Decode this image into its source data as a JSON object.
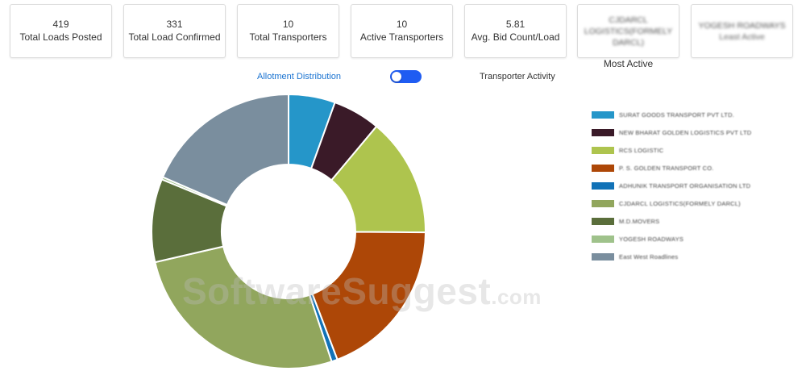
{
  "stats": [
    {
      "value": "419",
      "label": "Total Loads Posted"
    },
    {
      "value": "331",
      "label": "Total Load Confirmed"
    },
    {
      "value": "10",
      "label": "Total Transporters"
    },
    {
      "value": "10",
      "label": "Active Transporters"
    },
    {
      "value": "5.81",
      "label": "Avg. Bid Count/Load"
    }
  ],
  "most_active": {
    "name": "CJDARCL LOGISTICS(FORMELY DARCL)",
    "caption": "Most Active"
  },
  "least_active": {
    "name": "YOGESH ROADWAYS",
    "caption": "Least Active"
  },
  "toggle": {
    "left_label": "Allotment Distribution",
    "right_label": "Transporter Activity",
    "state": "on"
  },
  "colors": {
    "accent_link": "#1a73d1",
    "toggle": "#1f5cf2"
  },
  "chart_data": {
    "type": "pie",
    "variant": "donut",
    "title": "",
    "legend_position": "right",
    "slices": [
      {
        "name": "SURAT GOODS TRANSPORT PVT LTD.",
        "value": 5.5,
        "color": "#2596c9"
      },
      {
        "name": "NEW BHARAT GOLDEN LOGISTICS PVT LTD",
        "value": 5.6,
        "color": "#3a1a28"
      },
      {
        "name": "RCS LOGISTIC",
        "value": 14.0,
        "color": "#aec44e"
      },
      {
        "name": "P. S. GOLDEN TRANSPORT CO.",
        "value": 19.1,
        "color": "#ad4707"
      },
      {
        "name": "ADHUNIK TRANSPORT ORGANISATION LTD",
        "value": 0.7,
        "color": "#1172b7"
      },
      {
        "name": "CJDARCL LOGISTICS(FORMELY DARCL)",
        "value": 26.5,
        "color": "#91a65d"
      },
      {
        "name": "M.D.MOVERS",
        "value": 9.8,
        "color": "#5a6e3b"
      },
      {
        "name": "YOGESH ROADWAYS",
        "value": 0.3,
        "color": "#9fc28b"
      },
      {
        "name": "East West Roadlines",
        "value": 18.5,
        "color": "#7a8e9e"
      }
    ]
  },
  "watermark": {
    "text": "SoftwareSuggest",
    "suffix": ".com"
  }
}
